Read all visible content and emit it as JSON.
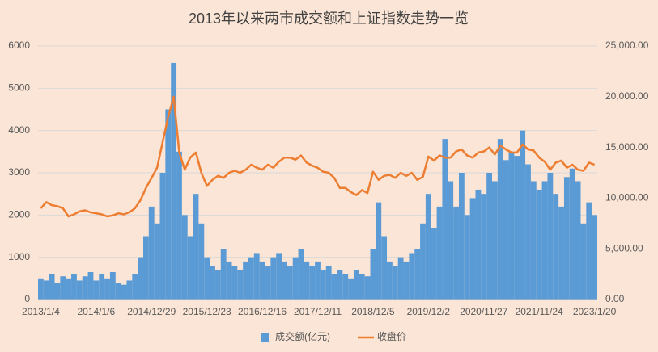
{
  "chart_data": {
    "type": "combo",
    "title": "2013年以来两市成交额和上证指数走势一览",
    "categories": [
      "2013/1/4",
      null,
      null,
      null,
      null,
      null,
      null,
      null,
      null,
      null,
      "2014/1/6",
      null,
      null,
      null,
      null,
      null,
      null,
      null,
      null,
      null,
      "2014/12/29",
      null,
      null,
      null,
      null,
      null,
      null,
      null,
      null,
      null,
      "2015/12/23",
      null,
      null,
      null,
      null,
      null,
      null,
      null,
      null,
      null,
      "2016/12/16",
      null,
      null,
      null,
      null,
      null,
      null,
      null,
      null,
      null,
      "2017/12/11",
      null,
      null,
      null,
      null,
      null,
      null,
      null,
      null,
      null,
      "2018/12/5",
      null,
      null,
      null,
      null,
      null,
      null,
      null,
      null,
      null,
      "2019/12/2",
      null,
      null,
      null,
      null,
      null,
      null,
      null,
      null,
      null,
      "2020/11/27",
      null,
      null,
      null,
      null,
      null,
      null,
      null,
      null,
      null,
      "2021/11/24",
      null,
      null,
      null,
      null,
      null,
      null,
      null,
      null,
      null,
      "2023/1/20"
    ],
    "series": [
      {
        "name": "成交额(亿元)",
        "type": "bar",
        "color": "#5b9bd5",
        "values": [
          500,
          450,
          600,
          400,
          550,
          500,
          600,
          450,
          550,
          650,
          450,
          600,
          500,
          650,
          400,
          350,
          450,
          600,
          1000,
          1500,
          2200,
          1800,
          3000,
          4500,
          5600,
          3500,
          2000,
          1500,
          2500,
          1800,
          1000,
          800,
          700,
          1200,
          900,
          800,
          700,
          900,
          1000,
          1100,
          900,
          800,
          1000,
          1100,
          900,
          800,
          1000,
          1200,
          900,
          800,
          900,
          700,
          800,
          600,
          700,
          600,
          500,
          700,
          600,
          550,
          1200,
          2300,
          1500,
          900,
          800,
          1000,
          900,
          1100,
          1200,
          1800,
          2500,
          1700,
          2200,
          3800,
          2800,
          2200,
          3000,
          2000,
          2400,
          2600,
          2500,
          3000,
          2800,
          3800,
          3300,
          3500,
          3400,
          4000,
          3200,
          2800,
          2600,
          2800,
          3000,
          2500,
          2200,
          2900,
          3100,
          2800,
          1800,
          2300,
          2000
        ]
      },
      {
        "name": "收盘价",
        "type": "line",
        "axis": "y2",
        "color": "#ed7d31",
        "values": [
          9000,
          9600,
          9300,
          9200,
          9000,
          8200,
          8400,
          8700,
          8800,
          8600,
          8500,
          8400,
          8200,
          8300,
          8500,
          8400,
          8600,
          9000,
          9800,
          11000,
          12000,
          13000,
          15500,
          18000,
          20000,
          14500,
          12800,
          14000,
          14500,
          12500,
          11200,
          11800,
          12200,
          12000,
          12500,
          12700,
          12500,
          12800,
          13300,
          13000,
          12800,
          13300,
          13000,
          13600,
          14000,
          14000,
          13800,
          14200,
          13500,
          13200,
          13000,
          12600,
          12500,
          12000,
          11000,
          11000,
          10600,
          10300,
          10800,
          10500,
          12600,
          11800,
          12200,
          12300,
          12000,
          12500,
          12200,
          12500,
          11800,
          12100,
          14100,
          13700,
          14200,
          14000,
          14000,
          14600,
          14800,
          14200,
          14000,
          14500,
          14600,
          15000,
          14300,
          15200,
          14800,
          14500,
          14500,
          15300,
          14800,
          14700,
          14000,
          13600,
          12800,
          13500,
          13700,
          13000,
          13300,
          12800,
          12700,
          13500,
          13300
        ]
      }
    ],
    "ylim": [
      0,
      6000
    ],
    "yticks": [
      0,
      1000,
      2000,
      3000,
      4000,
      5000,
      6000
    ],
    "y2lim": [
      0,
      25000
    ],
    "y2ticks": [
      {
        "value": 0,
        "label": "0.00"
      },
      {
        "value": 5000,
        "label": "5,000.00"
      },
      {
        "value": 10000,
        "label": "10,000.00"
      },
      {
        "value": 15000,
        "label": "15,000.00"
      },
      {
        "value": 20000,
        "label": "20,000.00"
      },
      {
        "value": 25000,
        "label": "25,000.00"
      }
    ],
    "grid": true
  }
}
